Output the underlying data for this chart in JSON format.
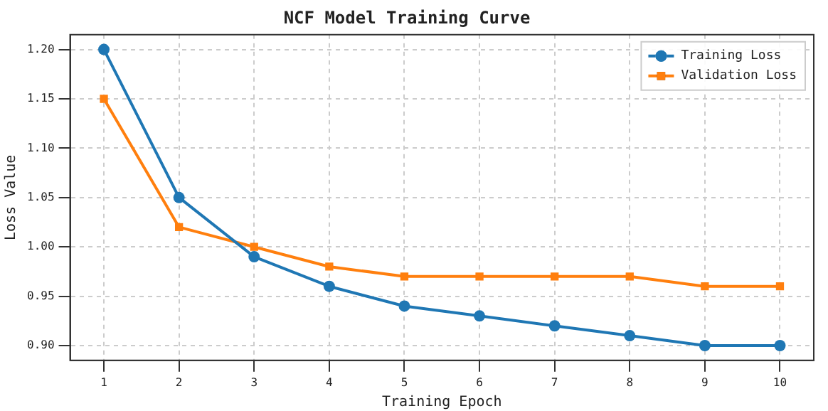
{
  "chart_data": {
    "type": "line",
    "title": "NCF Model Training Curve",
    "xlabel": "Training Epoch",
    "ylabel": "Loss Value",
    "x": [
      1,
      2,
      3,
      4,
      5,
      6,
      7,
      8,
      9,
      10
    ],
    "series": [
      {
        "name": "Training Loss",
        "color": "#1f77b4",
        "marker": "circle",
        "values": [
          1.2,
          1.05,
          0.99,
          0.96,
          0.94,
          0.93,
          0.92,
          0.91,
          0.9,
          0.9
        ]
      },
      {
        "name": "Validation Loss",
        "color": "#ff7f0e",
        "marker": "square",
        "values": [
          1.15,
          1.02,
          1.0,
          0.98,
          0.97,
          0.97,
          0.97,
          0.97,
          0.96,
          0.96
        ]
      }
    ],
    "xlim": [
      0.55,
      10.45
    ],
    "xticks": [
      1,
      2,
      3,
      4,
      5,
      6,
      7,
      8,
      9,
      10
    ],
    "ylim": [
      0.885,
      1.215
    ],
    "yticks": [
      {
        "value": 0.9,
        "label": "0.90"
      },
      {
        "value": 0.95,
        "label": "0.95"
      },
      {
        "value": 1.0,
        "label": "1.00"
      },
      {
        "value": 1.05,
        "label": "1.05"
      },
      {
        "value": 1.1,
        "label": "1.10"
      },
      {
        "value": 1.15,
        "label": "1.15"
      },
      {
        "value": 1.2,
        "label": "1.20"
      }
    ],
    "grid": true,
    "legend": "top right",
    "line_style": "solid"
  }
}
